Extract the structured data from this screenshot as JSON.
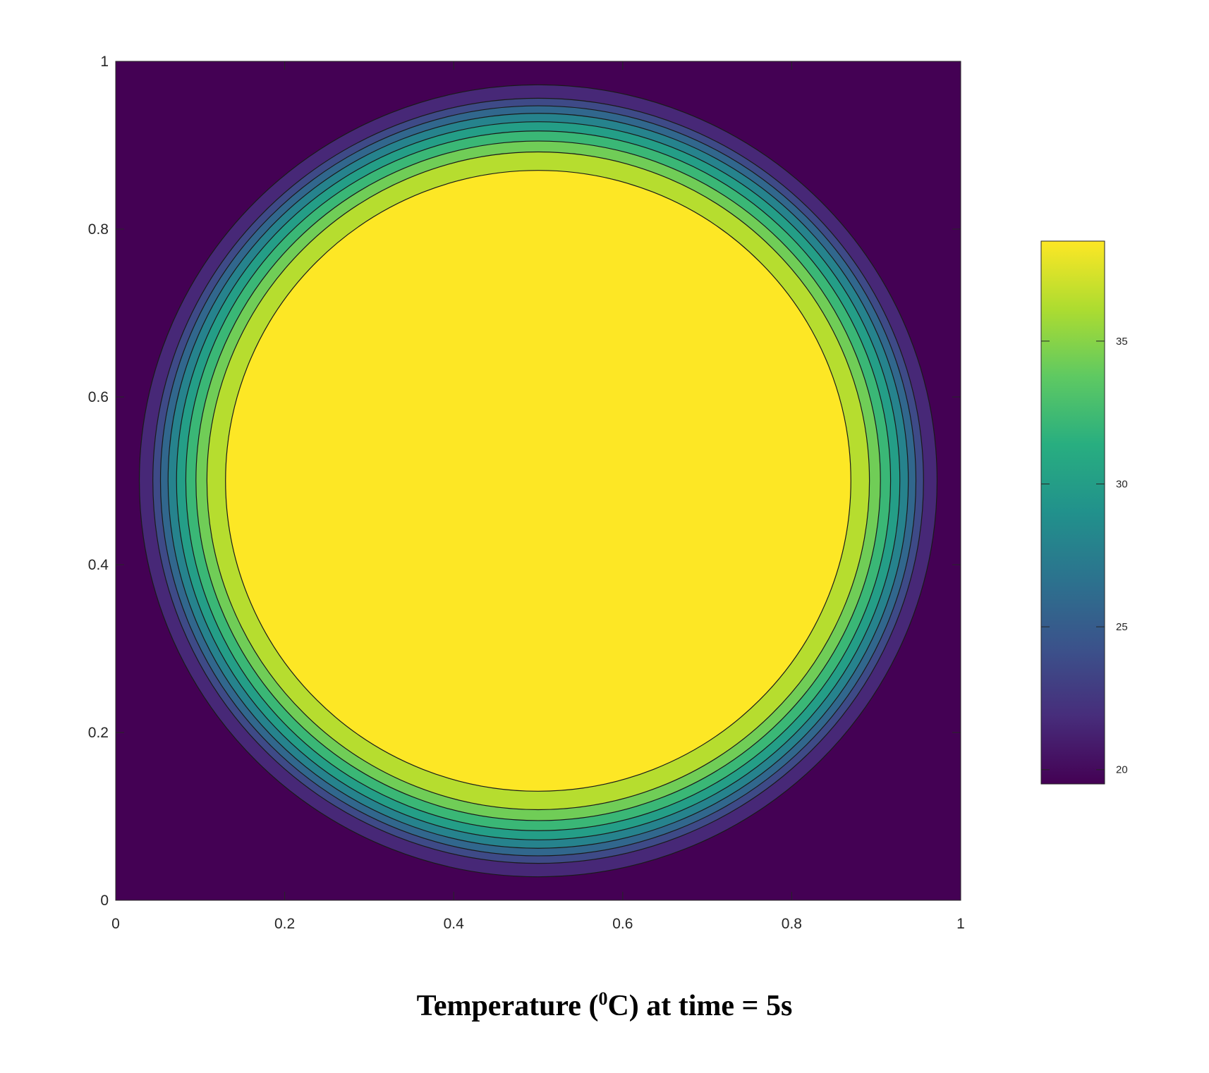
{
  "chart_data": {
    "type": "contourf",
    "colormap": "viridis",
    "xlim": [
      0,
      1
    ],
    "ylim": [
      0,
      1
    ],
    "x_ticks": [
      0,
      0.2,
      0.4,
      0.6,
      0.8,
      1
    ],
    "y_ticks": [
      0,
      0.2,
      0.4,
      0.6,
      0.8,
      1
    ],
    "x_tick_labels": [
      "0",
      "0.2",
      "0.4",
      "0.6",
      "0.8",
      "1"
    ],
    "y_tick_labels": [
      "0",
      "0.2",
      "0.4",
      "0.6",
      "0.8",
      "1"
    ],
    "center": [
      0.5,
      0.5
    ],
    "contour_levels": [
      {
        "level": 1,
        "radius": 0.472
      },
      {
        "level": 2,
        "radius": 0.456
      },
      {
        "level": 3,
        "radius": 0.447
      },
      {
        "level": 4,
        "radius": 0.438
      },
      {
        "level": 5,
        "radius": 0.428
      },
      {
        "level": 6,
        "radius": 0.417
      },
      {
        "level": 7,
        "radius": 0.405
      },
      {
        "level": 8,
        "radius": 0.392
      },
      {
        "level": 9,
        "radius": 0.37
      }
    ],
    "colorbar": {
      "range": [
        19.5,
        38.5
      ],
      "ticks": [
        20,
        25,
        30,
        35
      ],
      "tick_labels": [
        "20",
        "25",
        "30",
        "35"
      ],
      "placement": "right"
    },
    "caption_main": "Temperature (",
    "caption_sup": "0",
    "caption_rest": "C) at time = 5s"
  },
  "colors": {
    "background_low": "#440154",
    "high": "#fde725"
  }
}
